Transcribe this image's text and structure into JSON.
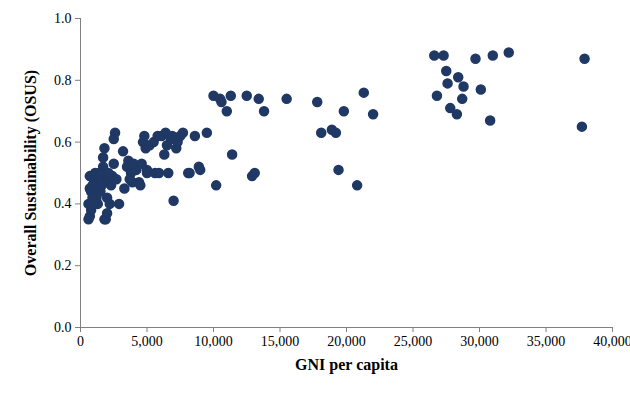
{
  "chart_data": {
    "type": "scatter",
    "x_label": "GNI per capita",
    "y_label": "Overall Sustainability (OSUS)",
    "color": "#1f3864",
    "marker": "circle",
    "grid": false,
    "xlim": [
      0,
      40000
    ],
    "ylim": [
      0,
      1
    ],
    "xticks": [
      0,
      {
        "value": 5000,
        "label": "5,000"
      },
      {
        "value": 10000,
        "label": "10,000"
      },
      {
        "value": 15000,
        "label": "15,000"
      },
      {
        "value": 20000,
        "label": "20,000"
      },
      {
        "value": 25000,
        "label": "25,000"
      },
      {
        "value": 30000,
        "label": "30,000"
      },
      {
        "value": 35000,
        "label": "35,000"
      },
      {
        "value": 40000,
        "label": "40,000"
      }
    ],
    "yticks": [
      {
        "value": 0,
        "label": "0.0"
      },
      0.2,
      0.4,
      0.6,
      0.8,
      {
        "value": 1,
        "label": "1.0"
      }
    ],
    "x": [
      600,
      700,
      800,
      600,
      700,
      800,
      900,
      1000,
      1000,
      700,
      1100,
      1200,
      1200,
      1300,
      1400,
      1500,
      1500,
      1600,
      1700,
      1700,
      1800,
      1800,
      1900,
      1900,
      2000,
      2000,
      2100,
      2200,
      2300,
      2400,
      2500,
      2500,
      2600,
      2700,
      2900,
      1300,
      1100,
      1600,
      1400,
      2100,
      900,
      3200,
      3300,
      3500,
      3600,
      3800,
      3900,
      4000,
      4200,
      4400,
      4600,
      4700,
      4800,
      4900,
      5000,
      5000,
      5200,
      5500,
      5600,
      5900,
      6100,
      6300,
      6400,
      6500,
      6600,
      6800,
      6900,
      7000,
      7200,
      7300,
      7500,
      7700,
      8100,
      8200,
      8600,
      8900,
      9000,
      9500,
      4500,
      3700,
      5800,
      10000,
      10200,
      10500,
      10600,
      11000,
      11300,
      11400,
      12500,
      12900,
      13100,
      13400,
      13800,
      15500,
      17800,
      18100,
      18900,
      19200,
      19400,
      19800,
      20800,
      21300,
      22000,
      26600,
      26800,
      27300,
      27500,
      27600,
      27800,
      28300,
      28400,
      28700,
      28800,
      29700,
      30100,
      30800,
      31000,
      32200,
      37700,
      37900
    ],
    "values": [
      0.35,
      0.36,
      0.38,
      0.4,
      0.45,
      0.44,
      0.46,
      0.43,
      0.48,
      0.49,
      0.44,
      0.42,
      0.46,
      0.47,
      0.45,
      0.48,
      0.44,
      0.5,
      0.52,
      0.55,
      0.58,
      0.35,
      0.35,
      0.47,
      0.37,
      0.42,
      0.48,
      0.4,
      0.46,
      0.49,
      0.53,
      0.61,
      0.63,
      0.48,
      0.4,
      0.4,
      0.5,
      0.46,
      0.5,
      0.5,
      0.42,
      0.57,
      0.45,
      0.52,
      0.54,
      0.5,
      0.47,
      0.53,
      0.51,
      0.47,
      0.53,
      0.6,
      0.62,
      0.58,
      0.51,
      0.5,
      0.59,
      0.6,
      0.5,
      0.5,
      0.62,
      0.56,
      0.63,
      0.59,
      0.5,
      0.61,
      0.62,
      0.41,
      0.58,
      0.6,
      0.62,
      0.63,
      0.5,
      0.5,
      0.62,
      0.52,
      0.51,
      0.63,
      0.46,
      0.48,
      0.62,
      0.75,
      0.46,
      0.74,
      0.73,
      0.7,
      0.75,
      0.56,
      0.75,
      0.49,
      0.5,
      0.74,
      0.7,
      0.74,
      0.73,
      0.63,
      0.64,
      0.63,
      0.51,
      0.7,
      0.46,
      0.76,
      0.69,
      0.88,
      0.75,
      0.88,
      0.83,
      0.79,
      0.71,
      0.69,
      0.81,
      0.74,
      0.78,
      0.87,
      0.77,
      0.67,
      0.88,
      0.89,
      0.65,
      0.87
    ]
  }
}
